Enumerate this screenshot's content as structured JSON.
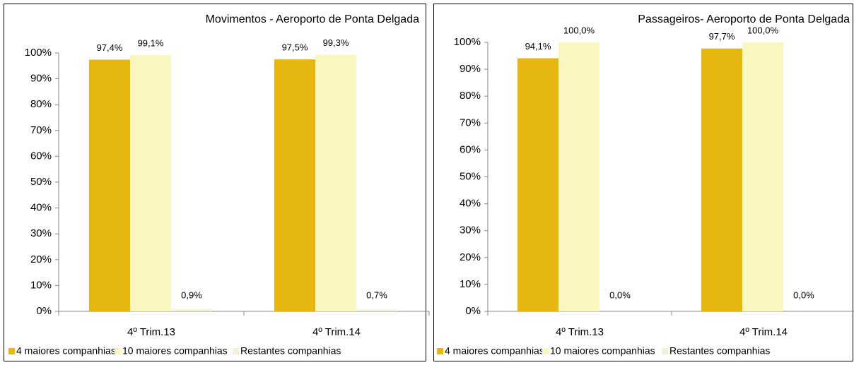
{
  "chart_data": [
    {
      "type": "bar",
      "title": "Movimentos - Aeroporto de Ponta Delgada",
      "categories": [
        "4º Trim.13",
        "4º Trim.14"
      ],
      "series": [
        {
          "name": "4 maiores companhias",
          "color": "#e6b70f",
          "values": [
            97.4,
            97.5
          ],
          "value_labels": [
            "97,4%",
            "97,5%"
          ]
        },
        {
          "name": "10 maiores companhias",
          "color": "#f9f6c0",
          "values": [
            99.1,
            99.3
          ],
          "value_labels": [
            "99,1%",
            "99,3%"
          ]
        },
        {
          "name": "Restantes companhias",
          "color": "#f3f1dc",
          "values": [
            0.9,
            0.7
          ],
          "value_labels": [
            "0,9%",
            "0,7%"
          ]
        }
      ],
      "ylim": [
        0,
        100
      ],
      "yticks": [
        {
          "value": 0,
          "label": "0%"
        },
        {
          "value": 10,
          "label": "10%"
        },
        {
          "value": 20,
          "label": "20%"
        },
        {
          "value": 30,
          "label": "30%"
        },
        {
          "value": 40,
          "label": "40%"
        },
        {
          "value": 50,
          "label": "50%"
        },
        {
          "value": 60,
          "label": "60%"
        },
        {
          "value": 70,
          "label": "70%"
        },
        {
          "value": 80,
          "label": "80%"
        },
        {
          "value": 90,
          "label": "90%"
        },
        {
          "value": 100,
          "label": "100%"
        }
      ],
      "legend": "bottom"
    },
    {
      "type": "bar",
      "title": "Passageiros- Aeroporto de Ponta Delgada",
      "categories": [
        "4º Trim.13",
        "4º Trim.14"
      ],
      "series": [
        {
          "name": "4 maiores companhias",
          "color": "#e6b70f",
          "values": [
            94.1,
            97.7
          ],
          "value_labels": [
            "94,1%",
            "97,7%"
          ]
        },
        {
          "name": "10 maiores companhias",
          "color": "#f9f6c0",
          "values": [
            100,
            100
          ],
          "value_labels": [
            "100,0%",
            "100,0%"
          ]
        },
        {
          "name": "Restantes companhias",
          "color": "#f3f1dc",
          "values": [
            0,
            0
          ],
          "value_labels": [
            "0,0%",
            "0,0%"
          ]
        }
      ],
      "ylim": [
        0,
        100
      ],
      "yticks": [
        {
          "value": 0,
          "label": "0%"
        },
        {
          "value": 10,
          "label": "10%"
        },
        {
          "value": 20,
          "label": "20%"
        },
        {
          "value": 30,
          "label": "30%"
        },
        {
          "value": 40,
          "label": "40%"
        },
        {
          "value": 50,
          "label": "50%"
        },
        {
          "value": 60,
          "label": "60%"
        },
        {
          "value": 70,
          "label": "70%"
        },
        {
          "value": 80,
          "label": "80%"
        },
        {
          "value": 90,
          "label": "90%"
        },
        {
          "value": 100,
          "label": "100%"
        }
      ],
      "legend": "bottom"
    }
  ]
}
